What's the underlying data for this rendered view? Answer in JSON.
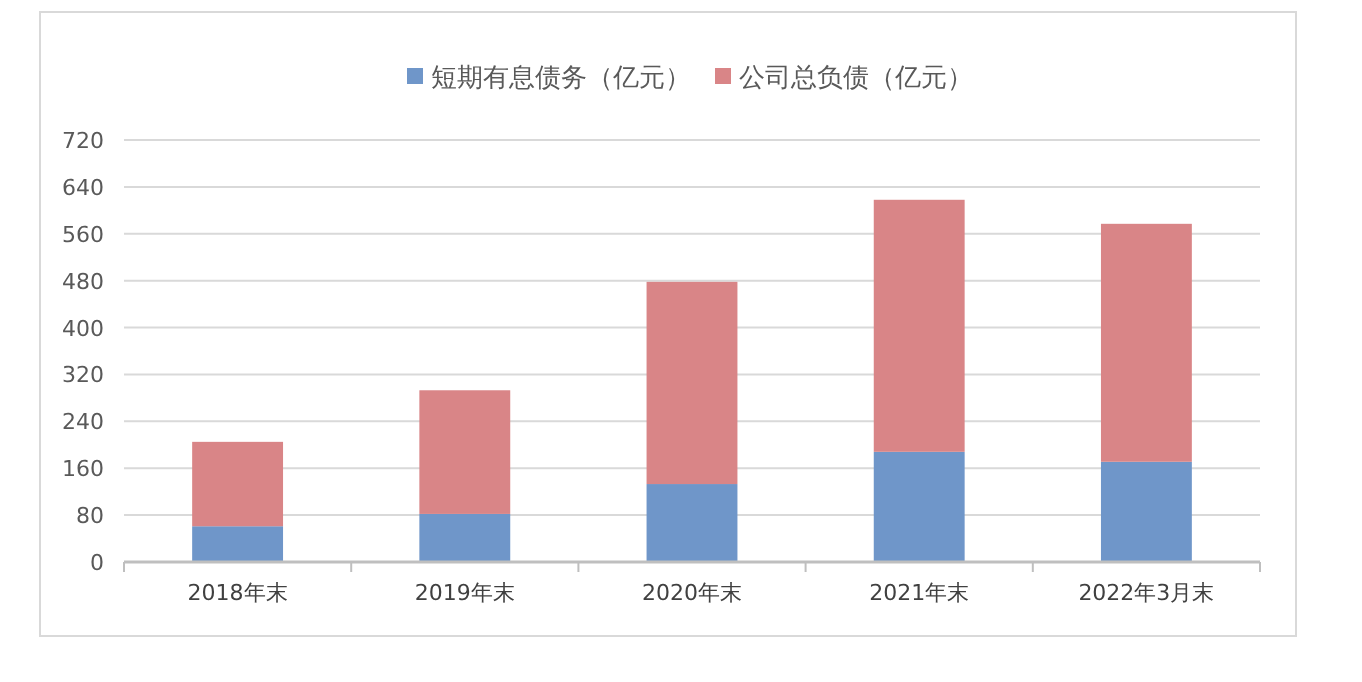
{
  "chart_data": {
    "type": "bar",
    "stacked": true,
    "categories": [
      "2018年末",
      "2019年末",
      "2020年末",
      "2021年末",
      "2022年3月末"
    ],
    "series": [
      {
        "name": "短期有息债务（亿元）",
        "color": "#6f96c9",
        "values": [
          61,
          82,
          133,
          188,
          171
        ]
      },
      {
        "name": "公司总负债（亿元）",
        "color": "#d98587",
        "values": [
          144,
          211,
          345,
          430,
          406
        ]
      }
    ],
    "ylim": [
      0,
      720
    ],
    "yticks": [
      0,
      80,
      160,
      240,
      320,
      400,
      480,
      560,
      640,
      720
    ],
    "grid": "y",
    "legend": "top"
  }
}
